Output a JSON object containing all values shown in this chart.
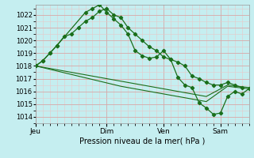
{
  "xlabel": "Pression niveau de la mer( hPa )",
  "bg_color": "#c5eef0",
  "grid_color_minor": "#e8c8c8",
  "grid_color_major": "#d8a8a8",
  "line_color": "#1a6e1a",
  "ylim": [
    1013.5,
    1022.8
  ],
  "yticks": [
    1014,
    1015,
    1016,
    1017,
    1018,
    1019,
    1020,
    1021,
    1022
  ],
  "xtick_labels": [
    "Jeu",
    "Dim",
    "Ven",
    "Sam"
  ],
  "xtick_positions": [
    0,
    30,
    54,
    78
  ],
  "xlim": [
    0,
    90
  ],
  "line1_x": [
    0,
    3,
    6,
    9,
    12,
    15,
    18,
    21,
    24,
    27,
    30,
    33,
    36,
    39,
    42,
    45,
    48,
    51,
    54,
    57,
    60,
    63,
    66,
    69,
    72,
    75,
    78,
    81,
    84,
    87
  ],
  "line1_y": [
    1018.0,
    1018.4,
    1019.0,
    1019.6,
    1020.3,
    1020.5,
    1021.0,
    1021.5,
    1021.8,
    1022.3,
    1022.5,
    1022.0,
    1021.8,
    1021.0,
    1020.5,
    1020.0,
    1019.5,
    1019.2,
    1018.7,
    1018.5,
    1018.3,
    1018.0,
    1017.2,
    1017.0,
    1016.7,
    1016.5,
    1016.5,
    1016.7,
    1016.5,
    1016.3
  ],
  "line2_x": [
    0,
    3,
    6,
    9,
    21,
    24,
    27,
    30,
    33,
    36,
    39,
    42,
    45,
    48,
    51,
    54,
    57,
    60,
    63,
    66,
    69,
    72,
    75,
    78,
    81,
    84,
    87,
    90
  ],
  "line2_y": [
    1018.0,
    1018.4,
    1019.0,
    1019.6,
    1022.2,
    1022.5,
    1022.8,
    1022.2,
    1021.7,
    1021.2,
    1020.5,
    1019.2,
    1018.8,
    1018.6,
    1018.7,
    1019.2,
    1018.5,
    1017.1,
    1016.5,
    1016.3,
    1015.1,
    1014.7,
    1014.2,
    1014.3,
    1015.6,
    1016.0,
    1015.8,
    1016.2
  ],
  "line3_x": [
    0,
    9,
    18,
    27,
    36,
    45,
    54,
    63,
    72,
    81,
    90
  ],
  "line3_y": [
    1018.0,
    1017.7,
    1017.4,
    1017.1,
    1016.8,
    1016.5,
    1016.2,
    1015.9,
    1015.6,
    1016.5,
    1016.3
  ],
  "line4_x": [
    0,
    9,
    18,
    27,
    36,
    45,
    54,
    63,
    72,
    81,
    90
  ],
  "line4_y": [
    1018.0,
    1017.6,
    1017.2,
    1016.8,
    1016.4,
    1016.1,
    1015.8,
    1015.5,
    1015.2,
    1016.4,
    1016.2
  ]
}
